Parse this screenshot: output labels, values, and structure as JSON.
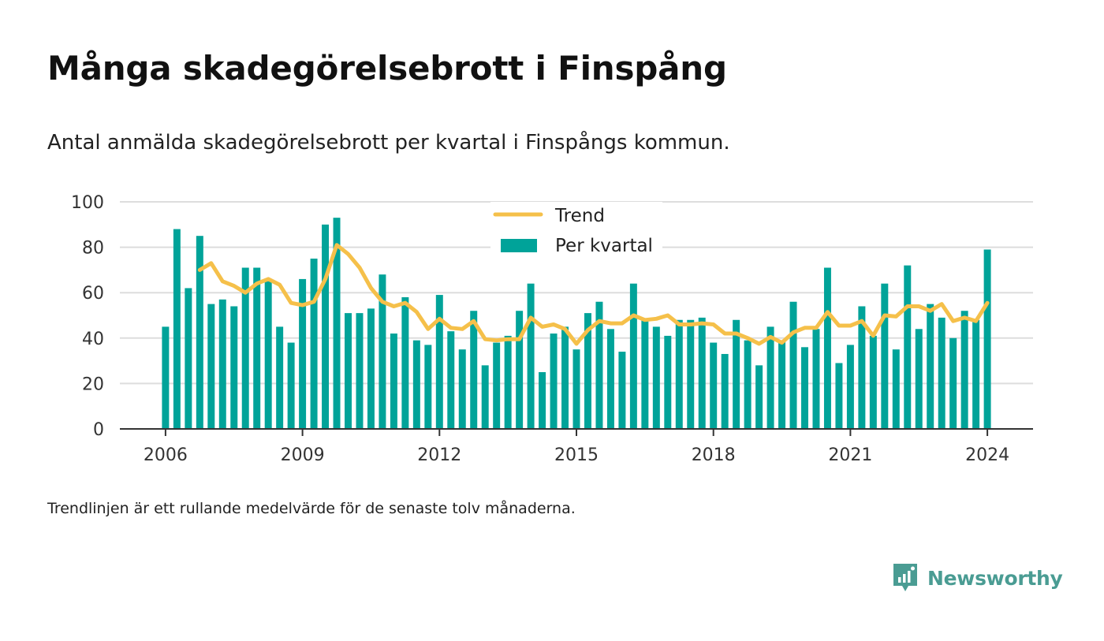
{
  "title": "Många skadegörelsebrott i Finspång",
  "subtitle": "Antal anmälda skadegörelsebrott per kvartal i Finspångs kommun.",
  "note": "Trendlinjen är ett rullande medelvärde för de senaste tolv månaderna.",
  "brand": {
    "name": "Newsworthy",
    "icon": "newsworthy-logo-icon",
    "color": "#4a9c93"
  },
  "colors": {
    "bar": "#00a399",
    "trend": "#f5c04a",
    "grid": "#dddddd",
    "axis": "#333333"
  },
  "chart_data": {
    "type": "bar",
    "x_start": 2006,
    "x_step": 0.25,
    "xlim": [
      2005,
      2025.0
    ],
    "ylim": [
      0,
      100
    ],
    "xticks": [
      2006,
      2009,
      2012,
      2015,
      2018,
      2021,
      2024
    ],
    "yticks": [
      0,
      20,
      40,
      60,
      80,
      100
    ],
    "grid": true,
    "legend_position": "top-center",
    "series": [
      {
        "name": "Per kvartal",
        "type": "bar",
        "values": [
          45,
          88,
          62,
          85,
          55,
          57,
          54,
          71,
          71,
          65,
          45,
          38,
          66,
          75,
          90,
          93,
          51,
          51,
          53,
          68,
          42,
          58,
          39,
          37,
          59,
          43,
          35,
          52,
          28,
          38,
          41,
          52,
          64,
          25,
          42,
          45,
          35,
          51,
          56,
          44,
          34,
          64,
          48,
          45,
          41,
          48,
          48,
          49,
          38,
          33,
          48,
          39,
          28,
          45,
          39,
          56,
          36,
          44,
          71,
          29,
          37,
          54,
          41,
          64,
          35,
          72,
          44,
          55,
          49,
          40,
          52,
          48,
          79
        ]
      },
      {
        "name": "Trend",
        "type": "line",
        "start_index": 3,
        "values": [
          70,
          73,
          65,
          63,
          60,
          64,
          66,
          63.5,
          55.5,
          54.5,
          56,
          66,
          81,
          77,
          71,
          62,
          56,
          54,
          55.5,
          51.5,
          44,
          48.5,
          44.5,
          44,
          47.5,
          39.5,
          39,
          39.5,
          39.5,
          49,
          45,
          46,
          44,
          37.5,
          43.5,
          47.5,
          46.5,
          46.5,
          50,
          48,
          48.5,
          50,
          46,
          46,
          46.5,
          46,
          42,
          42,
          40,
          37.5,
          40.5,
          38,
          42.5,
          44.5,
          44.5,
          51.5,
          45.5,
          45.5,
          47.5,
          41,
          50,
          49.5,
          54,
          54,
          52,
          55,
          47.5,
          49,
          47.5,
          55.5
        ]
      }
    ]
  }
}
